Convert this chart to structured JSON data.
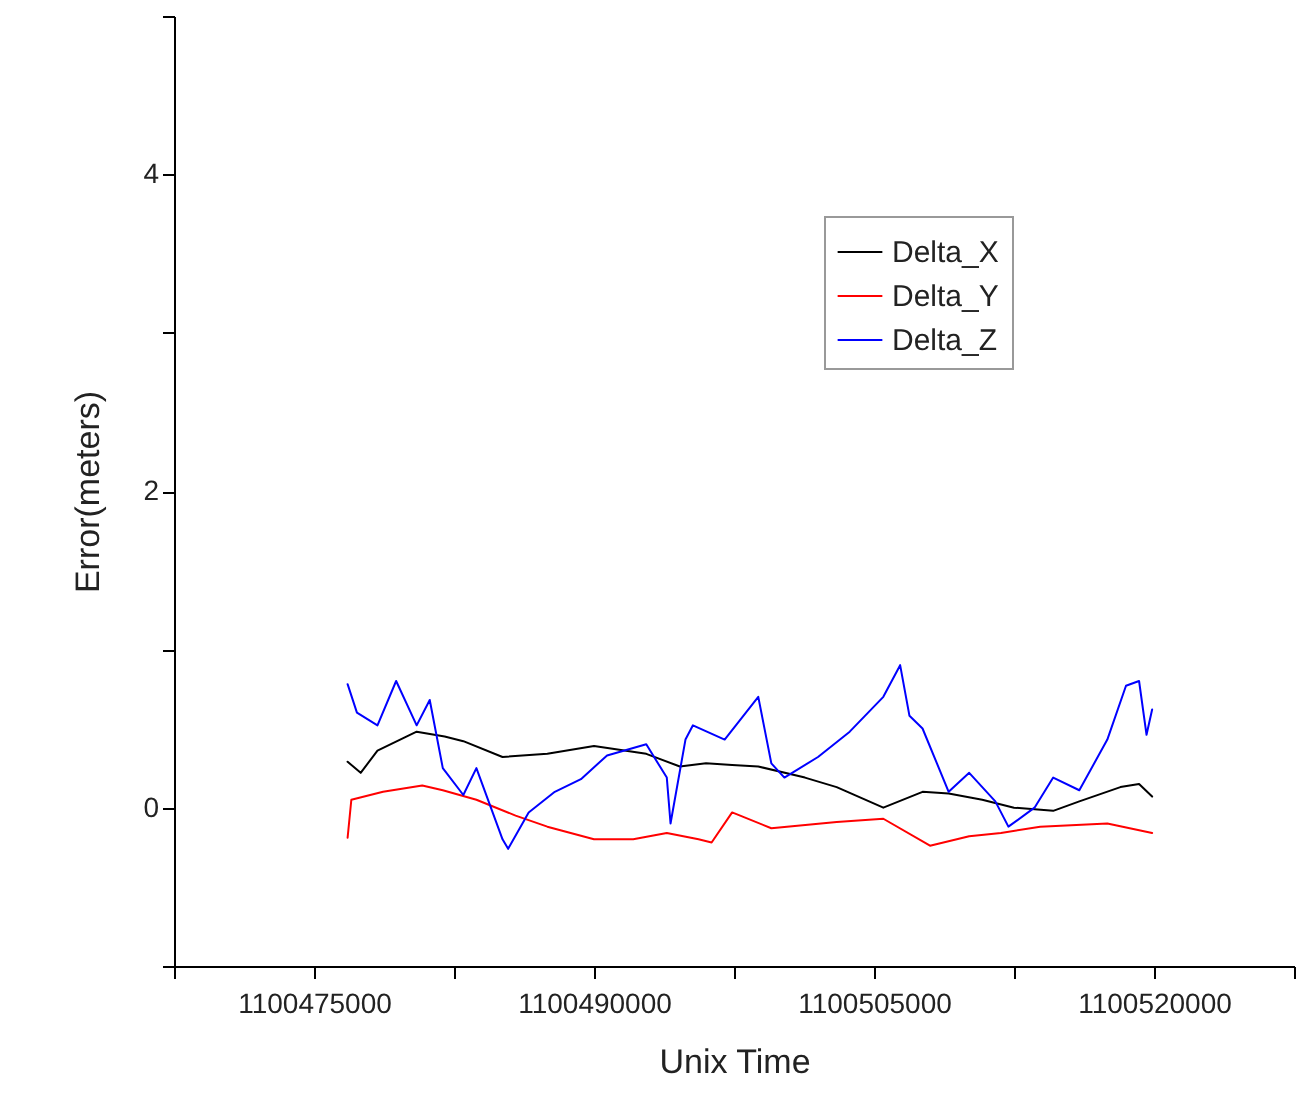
{
  "chart_data": {
    "type": "line",
    "xlabel": "Unix Time",
    "ylabel": "Error(meters)",
    "xlim": [
      1100467500,
      1100527500
    ],
    "xticks": [
      {
        "value": 1100467500,
        "label": null
      },
      1100475000,
      {
        "value": 1100482500,
        "label": null
      },
      1100490000,
      {
        "value": 1100497500,
        "label": null
      },
      1100505000,
      {
        "value": 1100512500,
        "label": null
      },
      1100520000,
      {
        "value": 1100527500,
        "label": null
      }
    ],
    "ylim": [
      -1,
      5
    ],
    "yticks": [
      {
        "value": -1,
        "label": null
      },
      0,
      {
        "value": 1,
        "label": null
      },
      2,
      {
        "value": 3,
        "label": null
      },
      4,
      {
        "value": 5,
        "label": null
      }
    ],
    "grid": false,
    "legend": "top right",
    "marker": "none",
    "line_style": "solid",
    "series": [
      {
        "name": "Delta_X",
        "color": "#000000",
        "x": [
          1100476800,
          1100477500,
          1100478400,
          1100480500,
          1100482000,
          1100483000,
          1100485100,
          1100487500,
          1100490000,
          1100492800,
          1100494600,
          1100496000,
          1100497400,
          1100498800,
          1100501300,
          1100503000,
          1100505500,
          1100507600,
          1100509000,
          1100510800,
          1100512500,
          1100514600,
          1100516000,
          1100518200,
          1100519200,
          1100519900
        ],
        "values": [
          0.29,
          0.22,
          0.36,
          0.48,
          0.45,
          0.42,
          0.32,
          0.34,
          0.39,
          0.34,
          0.26,
          0.28,
          0.27,
          0.26,
          0.19,
          0.13,
          0.0,
          0.1,
          0.09,
          0.05,
          0.0,
          -0.02,
          0.04,
          0.13,
          0.15,
          0.07
        ]
      },
      {
        "name": "Delta_Y",
        "color": "#ff0000",
        "x": [
          1100476800,
          1100477000,
          1100478700,
          1100480800,
          1100481900,
          1100483700,
          1100485800,
          1100487500,
          1100490000,
          1100492100,
          1100493900,
          1100495600,
          1100496300,
          1100497400,
          1100499500,
          1100503000,
          1100505500,
          1100508000,
          1100510100,
          1100511800,
          1100513900,
          1100517500,
          1100519900
        ],
        "values": [
          -0.19,
          0.05,
          0.1,
          0.14,
          0.11,
          0.05,
          -0.05,
          -0.12,
          -0.2,
          -0.2,
          -0.16,
          -0.2,
          -0.22,
          -0.03,
          -0.13,
          -0.09,
          -0.07,
          -0.24,
          -0.18,
          -0.16,
          -0.12,
          -0.1,
          -0.16
        ]
      },
      {
        "name": "Delta_Z",
        "color": "#0000ff",
        "x": [
          1100476800,
          1100477300,
          1100478400,
          1100479400,
          1100480500,
          1100481200,
          1100481900,
          1100483000,
          1100483700,
          1100485100,
          1100485400,
          1100486500,
          1100487900,
          1100489300,
          1100490700,
          1100492800,
          1100493900,
          1100494100,
          1100494900,
          1100495300,
          1100497000,
          1100498800,
          1100499500,
          1100500200,
          1100502000,
          1100503700,
          1100505500,
          1100506400,
          1100506900,
          1100507600,
          1100509000,
          1100510100,
          1100511500,
          1100512200,
          1100513600,
          1100514600,
          1100516000,
          1100517500,
          1100518500,
          1100519200,
          1100519600,
          1100519900
        ],
        "values": [
          0.78,
          0.6,
          0.52,
          0.8,
          0.52,
          0.68,
          0.25,
          0.08,
          0.25,
          -0.2,
          -0.26,
          -0.03,
          0.1,
          0.18,
          0.33,
          0.4,
          0.19,
          -0.1,
          0.43,
          0.52,
          0.43,
          0.7,
          0.28,
          0.19,
          0.32,
          0.48,
          0.7,
          0.9,
          0.58,
          0.5,
          0.1,
          0.22,
          0.04,
          -0.12,
          0.0,
          0.19,
          0.11,
          0.43,
          0.77,
          0.8,
          0.46,
          0.62
        ]
      }
    ]
  }
}
